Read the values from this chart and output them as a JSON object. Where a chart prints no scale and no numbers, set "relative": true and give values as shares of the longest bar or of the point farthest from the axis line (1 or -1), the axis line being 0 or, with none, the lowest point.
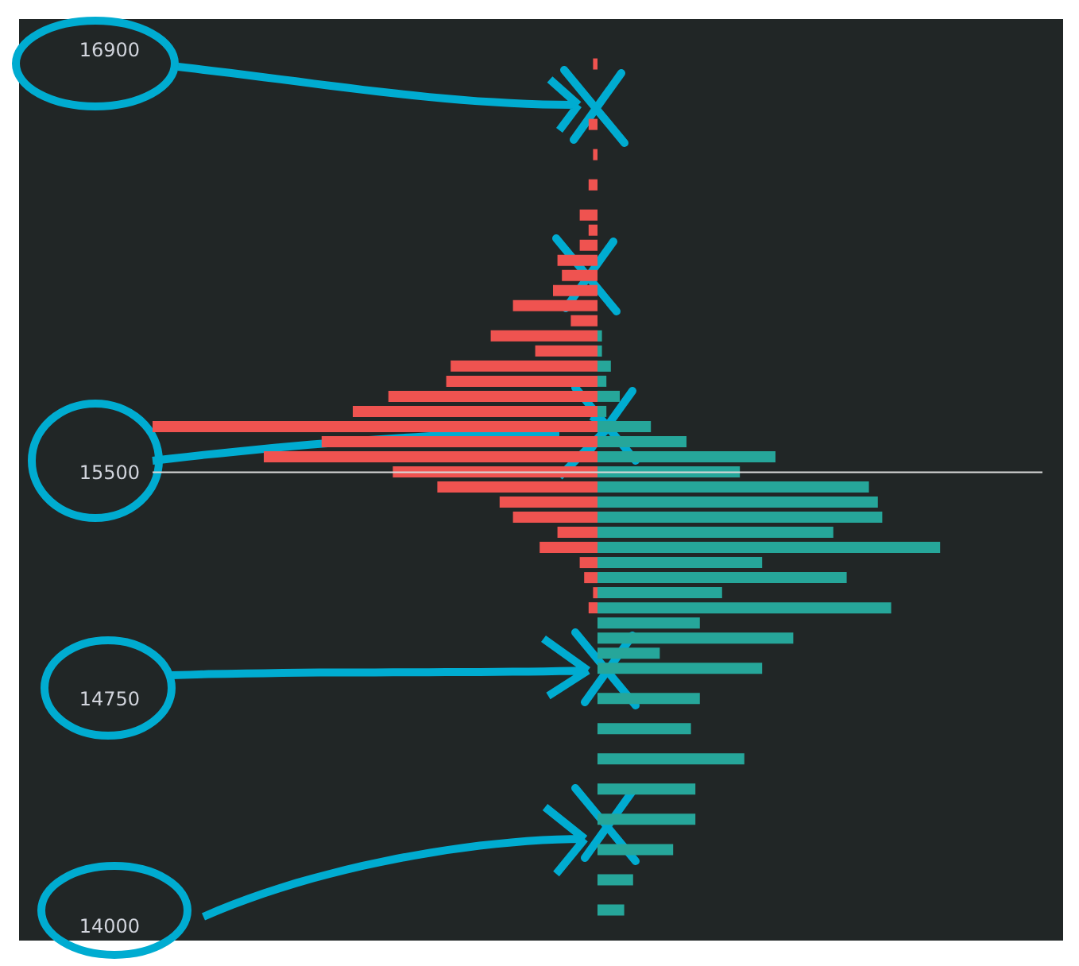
{
  "chart_data": {
    "type": "bar",
    "orientation": "horizontal",
    "relative": true,
    "x": [
      16850,
      16650,
      16550,
      16450,
      16350,
      16300,
      16250,
      16200,
      16150,
      16100,
      16050,
      16000,
      15950,
      15900,
      15850,
      15800,
      15750,
      15700,
      15650,
      15600,
      15550,
      15500,
      15450,
      15400,
      15350,
      15300,
      15250,
      15200,
      15150,
      15100,
      15050,
      15000,
      14950,
      14900,
      14850,
      14750,
      14650,
      14550,
      14450,
      14350,
      14250,
      14150,
      14050
    ],
    "series": [
      {
        "color": "#ef5350",
        "values": [
          -0.01,
          -0.02,
          -0.01,
          -0.02,
          -0.04,
          -0.02,
          -0.04,
          -0.09,
          -0.08,
          -0.1,
          -0.19,
          -0.06,
          -0.24,
          -0.14,
          -0.33,
          -0.34,
          -0.47,
          -0.55,
          -1,
          -0.62,
          -0.75,
          -0.46,
          -0.36,
          -0.22,
          -0.19,
          -0.09,
          -0.13,
          -0.04,
          -0.03,
          -0.01,
          -0.02,
          null,
          null,
          null,
          null,
          null,
          null,
          null,
          null,
          null,
          null,
          null,
          null
        ]
      },
      {
        "color": "#26a69a",
        "values": [
          null,
          null,
          null,
          null,
          null,
          null,
          null,
          null,
          null,
          null,
          null,
          null,
          0.01,
          0.01,
          0.03,
          0.02,
          0.05,
          0.02,
          0.12,
          0.2,
          0.4,
          0.32,
          0.61,
          0.63,
          0.64,
          0.53,
          0.77,
          0.37,
          0.56,
          0.28,
          0.66,
          0.23,
          0.44,
          0.14,
          0.37,
          0.23,
          0.21,
          0.33,
          0.22,
          0.22,
          0.17,
          0.08,
          0.06
        ]
      }
    ],
    "ylim": [
      13950,
      17000
    ],
    "yticks": [
      16900,
      15500,
      14750,
      14000
    ],
    "ref_lines": [
      {
        "axis": "y",
        "value": 15500,
        "color": "#d9d9d9"
      }
    ]
  }
}
